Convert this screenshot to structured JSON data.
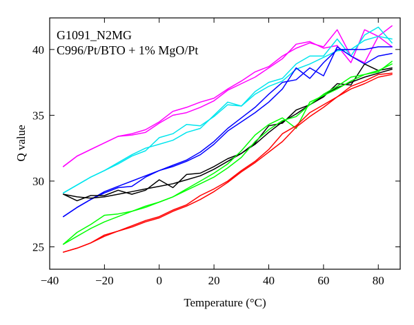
{
  "chart_data": {
    "type": "line",
    "title": "",
    "annotations": [
      "G1091_N2MG",
      "C996/Pt/BTO + 1% MgO/Pt"
    ],
    "xlabel": "Temperature (°C)",
    "ylabel": "Q value",
    "xlim": [
      -40,
      88
    ],
    "ylim": [
      23.3,
      42.4
    ],
    "xticks": [
      -40,
      -20,
      0,
      20,
      40,
      60,
      80
    ],
    "yticks": [
      25,
      30,
      35,
      40
    ],
    "xtick_labels": [
      "−40",
      "−20",
      "0",
      "20",
      "40",
      "60",
      "80"
    ],
    "ytick_labels": [
      "25",
      "30",
      "35",
      "40"
    ],
    "grid": false,
    "legend": "none",
    "x": [
      -35,
      -30,
      -25,
      -20,
      -15,
      -10,
      -5,
      0,
      5,
      10,
      15,
      20,
      25,
      30,
      35,
      40,
      45,
      50,
      55,
      60,
      65,
      70,
      75,
      80,
      85
    ],
    "series": [
      {
        "color": "#ff00ff",
        "values": [
          31.1,
          31.9,
          32.4,
          32.9,
          33.4,
          33.5,
          33.7,
          34.4,
          35.0,
          35.2,
          35.6,
          36.1,
          36.9,
          37.4,
          37.9,
          38.6,
          39.3,
          40.4,
          40.6,
          40.1,
          40.3,
          39.0,
          41.5,
          41.0,
          40.2
        ]
      },
      {
        "color": "#ff00ff",
        "values": [
          31.1,
          31.9,
          32.4,
          32.9,
          33.4,
          33.6,
          33.9,
          34.5,
          35.3,
          35.6,
          36.0,
          36.3,
          37.0,
          37.6,
          38.3,
          38.7,
          39.5,
          40.1,
          40.5,
          40.2,
          41.5,
          39.5,
          39.0,
          41.0,
          41.8
        ]
      },
      {
        "color": "#00e5ee",
        "values": [
          29.1,
          29.7,
          30.3,
          30.8,
          31.3,
          31.9,
          32.3,
          33.3,
          33.6,
          34.3,
          34.2,
          34.9,
          35.8,
          35.7,
          36.8,
          37.5,
          37.8,
          38.9,
          39.5,
          39.5,
          40.8,
          39.5,
          41.1,
          41.7,
          40.5
        ]
      },
      {
        "color": "#00e5ee",
        "values": [
          29.1,
          29.7,
          30.3,
          30.8,
          31.4,
          32.0,
          32.5,
          32.8,
          33.1,
          33.7,
          34.0,
          35.0,
          36.0,
          35.7,
          36.6,
          37.2,
          37.6,
          38.5,
          38.9,
          39.4,
          39.9,
          40.0,
          40.7,
          41.0,
          40.8
        ]
      },
      {
        "color": "#0000ff",
        "values": [
          27.3,
          28.0,
          28.6,
          29.1,
          29.5,
          29.6,
          30.3,
          30.8,
          31.1,
          31.5,
          32.0,
          32.8,
          33.8,
          34.5,
          35.2,
          36.0,
          37.0,
          38.6,
          37.8,
          39.0,
          40.0,
          40.0,
          40.0,
          40.2,
          40.2
        ]
      },
      {
        "color": "#0000ff",
        "values": [
          27.3,
          28.0,
          28.6,
          29.2,
          29.6,
          30.0,
          30.4,
          30.8,
          31.2,
          31.6,
          32.2,
          33.0,
          34.0,
          34.8,
          35.6,
          36.6,
          37.5,
          37.7,
          38.6,
          38.0,
          40.2,
          39.5,
          38.9,
          39.5,
          39.7
        ]
      },
      {
        "color": "#000000",
        "values": [
          29.0,
          28.5,
          28.9,
          28.9,
          29.3,
          29.0,
          29.3,
          30.1,
          29.5,
          30.5,
          30.6,
          31.1,
          31.7,
          32.1,
          32.9,
          34.2,
          34.4,
          35.4,
          35.8,
          36.4,
          37.4,
          37.3,
          38.9,
          38.4,
          38.6
        ]
      },
      {
        "color": "#000000",
        "values": [
          29.0,
          28.8,
          28.7,
          28.8,
          29.0,
          29.2,
          29.4,
          29.6,
          29.8,
          30.1,
          30.4,
          30.9,
          31.5,
          32.1,
          32.8,
          33.7,
          34.5,
          35.1,
          35.8,
          36.5,
          37.1,
          37.5,
          37.9,
          38.2,
          38.5
        ]
      },
      {
        "color": "#00ff00",
        "values": [
          25.2,
          26.1,
          26.7,
          27.4,
          27.5,
          27.7,
          28.0,
          28.4,
          28.8,
          29.3,
          29.8,
          30.3,
          31.0,
          31.8,
          33.0,
          33.9,
          34.6,
          34.9,
          35.8,
          36.6,
          37.2,
          37.9,
          38.1,
          38.3,
          39.1
        ]
      },
      {
        "color": "#00ff00",
        "values": [
          25.2,
          25.8,
          26.4,
          26.9,
          27.3,
          27.7,
          28.1,
          28.4,
          28.8,
          29.4,
          30.0,
          30.6,
          31.3,
          32.3,
          33.5,
          34.3,
          34.8,
          34.0,
          36.0,
          36.5,
          37.0,
          37.6,
          38.1,
          38.4,
          38.9
        ]
      },
      {
        "color": "#ff0000",
        "values": [
          24.6,
          24.9,
          25.3,
          25.9,
          26.2,
          26.6,
          27.0,
          27.3,
          27.8,
          28.2,
          28.9,
          29.4,
          30.0,
          30.8,
          31.5,
          32.4,
          33.6,
          34.2,
          35.2,
          35.8,
          36.4,
          37.2,
          37.6,
          38.1,
          38.2
        ]
      },
      {
        "color": "#ff0000",
        "values": [
          24.6,
          24.9,
          25.3,
          25.8,
          26.2,
          26.5,
          26.9,
          27.2,
          27.7,
          28.1,
          28.6,
          29.2,
          29.9,
          30.7,
          31.4,
          32.2,
          33.0,
          34.1,
          34.9,
          35.6,
          36.4,
          37.0,
          37.4,
          37.9,
          38.1
        ]
      }
    ]
  }
}
